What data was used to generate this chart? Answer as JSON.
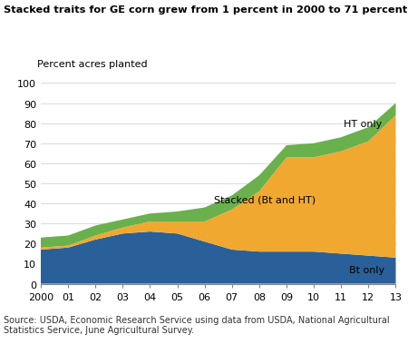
{
  "years": [
    2000,
    2001,
    2002,
    2003,
    2004,
    2005,
    2006,
    2007,
    2008,
    2009,
    2010,
    2011,
    2012,
    2013
  ],
  "bt_only": [
    17,
    18,
    22,
    25,
    26,
    25,
    21,
    17,
    16,
    16,
    16,
    15,
    14,
    13
  ],
  "stacked": [
    1,
    1,
    2,
    3,
    5,
    6,
    10,
    20,
    30,
    47,
    47,
    51,
    57,
    71
  ],
  "ht_only": [
    5,
    5,
    5,
    4,
    4,
    5,
    7,
    7,
    8,
    6,
    7,
    7,
    7,
    6
  ],
  "bt_color": "#2a6099",
  "stacked_color": "#f0a830",
  "ht_color": "#6ab04c",
  "title": "Stacked traits for GE corn grew from 1 percent in 2000 to 71 percent in 2013",
  "ylabel_text": "Percent acres planted",
  "ylim": [
    0,
    100
  ],
  "source": "Source: USDA, Economic Research Service using data from USDA, National Agricultural\nStatistics Service, June Agricultural Survey.",
  "label_bt": "Bt only",
  "label_stacked": "Stacked (Bt and HT)",
  "label_ht": "HT only",
  "xtick_labels": [
    "2000",
    "01",
    "02",
    "03",
    "04",
    "05",
    "06",
    "07",
    "08",
    "09",
    "10",
    "11",
    "12",
    "13"
  ],
  "ytick_vals": [
    0,
    10,
    20,
    30,
    40,
    50,
    60,
    70,
    80,
    90,
    100
  ]
}
